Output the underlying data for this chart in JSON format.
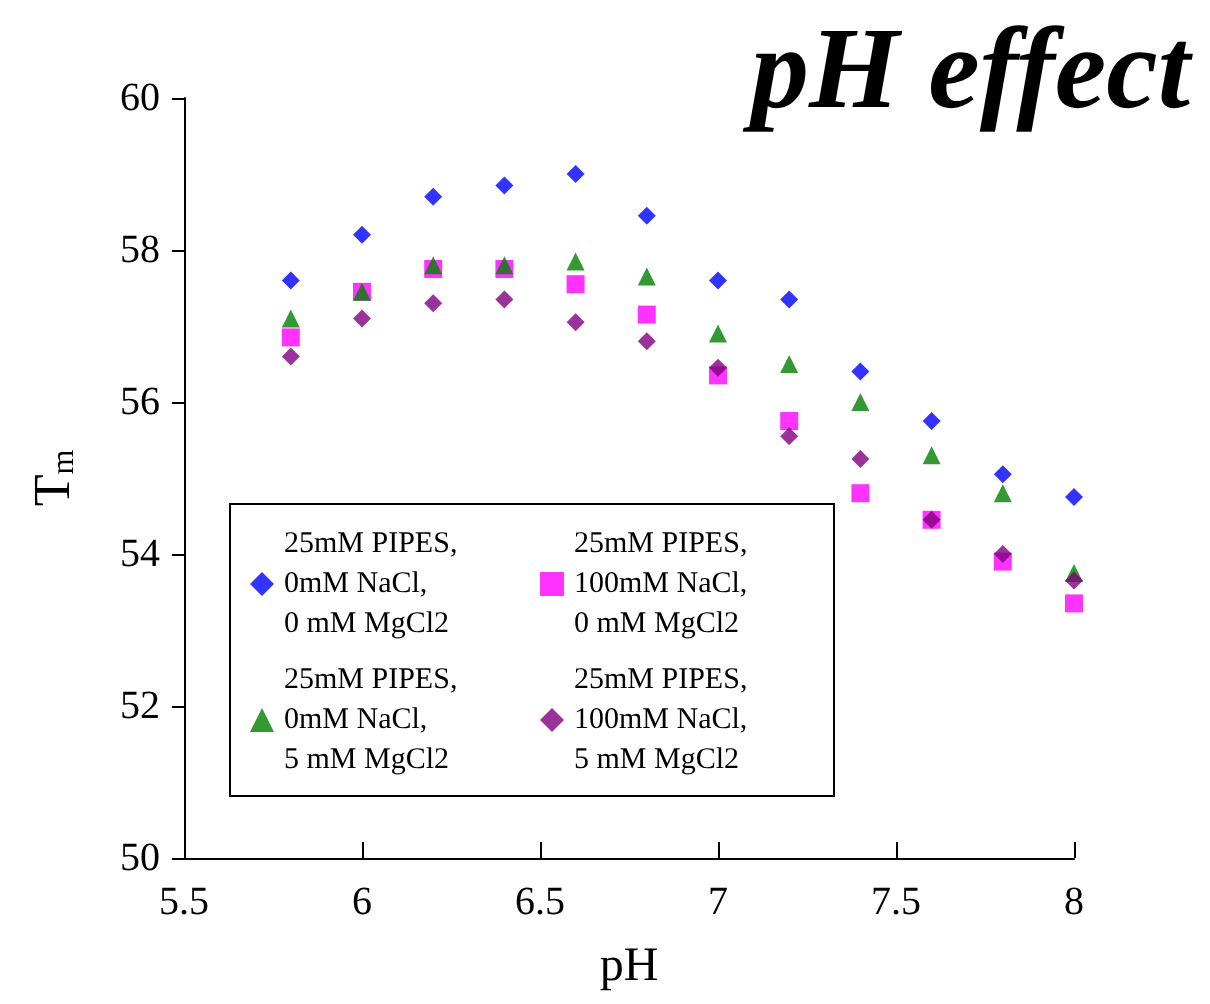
{
  "chart_data": {
    "type": "scatter",
    "title": "pH effect",
    "xlabel": "pH",
    "ylabel": "T$_{m}$",
    "x": [
      5.8,
      6.0,
      6.2,
      6.4,
      6.6,
      6.8,
      7.0,
      7.2,
      7.4,
      7.6,
      7.8,
      8.0
    ],
    "series": [
      {
        "name": "25mM PIPES,\n0mM NaCl,\n0 mM MgCl2",
        "color": "#0000ff",
        "marker": "diamond",
        "values": [
          57.6,
          58.2,
          58.7,
          58.85,
          59.0,
          58.45,
          57.6,
          57.35,
          56.4,
          55.75,
          55.05,
          54.75
        ]
      },
      {
        "name": "25mM PIPES,\n100mM NaCl,\n0 mM MgCl2",
        "color": "#ff00ff",
        "marker": "square",
        "values": [
          56.85,
          57.45,
          57.75,
          57.75,
          57.55,
          57.15,
          56.35,
          55.75,
          54.8,
          54.45,
          53.9,
          53.35
        ]
      },
      {
        "name": "25mM PIPES,\n0mM NaCl,\n5 mM MgCl2",
        "color": "#008000",
        "marker": "triangle",
        "values": [
          57.1,
          57.45,
          57.8,
          57.8,
          57.85,
          57.65,
          56.9,
          56.5,
          56.0,
          55.3,
          54.8,
          53.75
        ]
      },
      {
        "name": "25mM PIPES,\n100mM NaCl,\n5 mM MgCl2",
        "color": "#800080",
        "marker": "diamond",
        "values": [
          56.6,
          57.1,
          57.3,
          57.35,
          57.05,
          56.8,
          56.45,
          55.55,
          55.25,
          54.45,
          54.0,
          53.65
        ]
      }
    ],
    "xlim": [
      5.5,
      8
    ],
    "xticks": [
      5.5,
      6,
      6.5,
      7,
      7.5,
      8
    ],
    "ylim": [
      50,
      60
    ],
    "yticks": [
      50,
      52,
      54,
      56,
      58,
      60
    ],
    "grid": false,
    "legend": "bottom left"
  }
}
